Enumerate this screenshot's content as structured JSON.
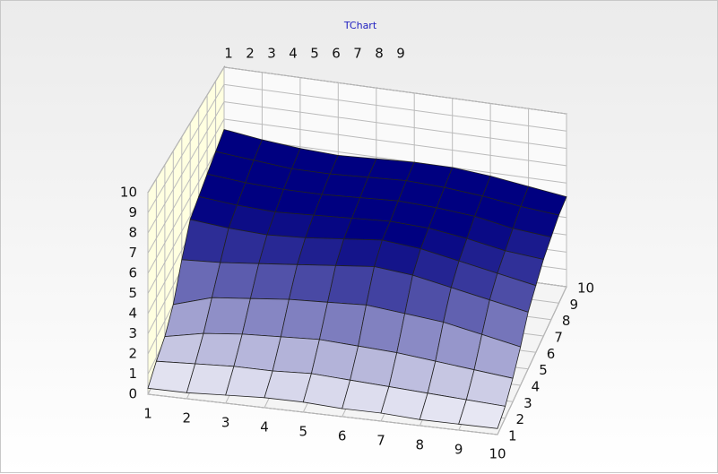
{
  "chart_data": {
    "type": "surface",
    "title": "TChart",
    "xlim": [
      1,
      10
    ],
    "xticks": [
      1,
      2,
      3,
      4,
      5,
      6,
      7,
      8,
      9,
      10
    ],
    "zlim": [
      1,
      10
    ],
    "zticks": [
      1,
      2,
      3,
      4,
      5,
      6,
      7,
      8,
      9,
      10
    ],
    "ylim": [
      0,
      10
    ],
    "yticks": [
      0,
      1,
      2,
      3,
      4,
      5,
      6,
      7,
      8,
      9,
      10
    ],
    "low_color": "#ffffff",
    "high_color": "#000080",
    "wall_color": "#ffffe0",
    "grid": true,
    "values": [
      [
        0.3,
        0.3,
        0.4,
        0.5,
        0.5,
        0.4,
        0.4,
        0.3,
        0.3,
        0.3
      ],
      [
        0.8,
        0.9,
        1.0,
        1.0,
        1.1,
        1.0,
        0.9,
        0.8,
        0.7,
        0.6
      ],
      [
        1.2,
        1.6,
        1.8,
        1.9,
        2.0,
        1.9,
        1.8,
        1.6,
        1.4,
        1.2
      ],
      [
        2.0,
        2.6,
        2.8,
        3.0,
        3.1,
        3.2,
        3.0,
        2.8,
        2.4,
        2.0
      ],
      [
        3.5,
        3.6,
        3.8,
        4.0,
        4.2,
        4.4,
        4.2,
        3.8,
        3.4,
        3.0
      ],
      [
        4.8,
        4.6,
        4.5,
        4.6,
        4.8,
        5.0,
        4.8,
        4.4,
        4.0,
        3.6
      ],
      [
        5.2,
        5.0,
        4.9,
        5.0,
        5.1,
        5.2,
        5.1,
        4.8,
        4.4,
        4.2
      ],
      [
        5.6,
        5.4,
        5.3,
        5.3,
        5.4,
        5.5,
        5.4,
        5.2,
        4.8,
        4.6
      ],
      [
        6.0,
        5.8,
        5.6,
        5.6,
        5.7,
        5.8,
        5.7,
        5.5,
        5.2,
        5.0
      ],
      [
        6.4,
        6.1,
        5.9,
        5.8,
        5.9,
        6.0,
        6.0,
        5.8,
        5.5,
        5.2
      ]
    ]
  }
}
